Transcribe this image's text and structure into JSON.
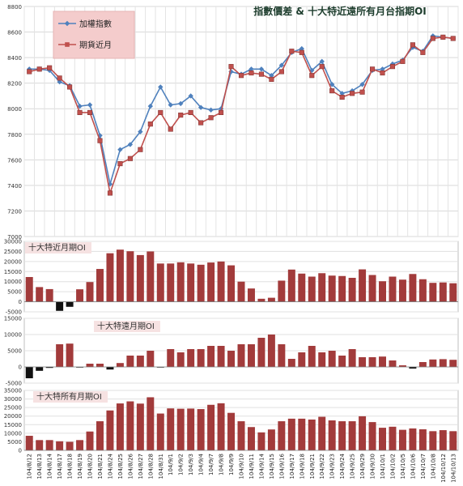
{
  "chart_data": [
    {
      "type": "line",
      "title": "指數價差 & 十大特近遠所有月台指期OI",
      "ylim": [
        7000,
        8800
      ],
      "yticks": [
        7000,
        7200,
        7400,
        7600,
        7800,
        8000,
        8200,
        8400,
        8600,
        8800
      ],
      "grid": true,
      "legend_position": "top-left",
      "categories": [
        "104/8/12",
        "104/8/13",
        "104/8/14",
        "104/8/17",
        "104/8/18",
        "104/8/19",
        "104/8/20",
        "104/8/21",
        "104/8/24",
        "104/8/25",
        "104/8/26",
        "104/8/27",
        "104/8/28",
        "104/8/31",
        "104/9/1",
        "104/9/2",
        "104/9/3",
        "104/9/4",
        "104/9/7",
        "104/9/8",
        "104/9/9",
        "104/9/10",
        "104/9/11",
        "104/9/14",
        "104/9/15",
        "104/9/16",
        "104/9/17",
        "104/9/18",
        "104/9/21",
        "104/9/22",
        "104/9/23",
        "104/9/24",
        "104/9/25",
        "104/9/29",
        "104/9/30",
        "104/10/1",
        "104/10/2",
        "104/10/5",
        "104/10/6",
        "104/10/7",
        "104/10/8",
        "104/10/12",
        "104/10/13"
      ],
      "series": [
        {
          "name": "加權指數",
          "color": "#4f81bd",
          "marker": "diamond",
          "values": [
            8310,
            8310,
            8300,
            8210,
            8180,
            8020,
            8030,
            7790,
            7410,
            7680,
            7720,
            7820,
            8020,
            8170,
            8030,
            8040,
            8100,
            8010,
            7990,
            8000,
            8290,
            8270,
            8310,
            8310,
            8260,
            8340,
            8440,
            8470,
            8300,
            8370,
            8190,
            8120,
            8140,
            8190,
            8300,
            8310,
            8350,
            8380,
            8480,
            8450,
            8570,
            8560,
            8550
          ]
        },
        {
          "name": "期貨近月",
          "color": "#c0504d",
          "marker": "square",
          "values": [
            8290,
            8310,
            8320,
            8240,
            8170,
            7970,
            7970,
            7750,
            7340,
            7570,
            7610,
            7680,
            7880,
            7970,
            7840,
            7950,
            7970,
            7890,
            7930,
            7970,
            8330,
            8260,
            8280,
            8270,
            8230,
            8290,
            8450,
            8440,
            8260,
            8330,
            8140,
            8090,
            8120,
            8130,
            8310,
            8280,
            8330,
            8370,
            8500,
            8440,
            8550,
            8560,
            8550
          ]
        }
      ]
    },
    {
      "type": "bar",
      "title": "十大特近月期OI",
      "ylim": [
        -5000,
        30000
      ],
      "yticks": [
        -5000,
        0,
        5000,
        10000,
        15000,
        20000,
        25000,
        30000
      ],
      "values": [
        12300,
        7300,
        6300,
        -4500,
        -2500,
        6200,
        9800,
        16300,
        24100,
        25900,
        25100,
        23200,
        25000,
        19000,
        19000,
        19600,
        19000,
        18400,
        19500,
        20000,
        18100,
        10000,
        6600,
        1500,
        2000,
        10500,
        16000,
        14000,
        12500,
        14200,
        13000,
        12800,
        11900,
        16100,
        13300,
        10200,
        12500,
        11000,
        13800,
        11200,
        9400,
        9600,
        9200
      ],
      "color": "#a23b3b",
      "negative_color": "#111111"
    },
    {
      "type": "bar",
      "title": "十大特遠月期OI",
      "ylim": [
        -5000,
        15000
      ],
      "yticks": [
        -5000,
        0,
        5000,
        10000,
        15000
      ],
      "values": [
        -3500,
        -1200,
        -300,
        7000,
        7200,
        -200,
        1000,
        1000,
        -800,
        1200,
        3500,
        3500,
        5000,
        -200,
        5500,
        4500,
        5500,
        5500,
        6500,
        6500,
        5000,
        7000,
        7000,
        9000,
        10000,
        7000,
        2500,
        4500,
        6500,
        4500,
        5000,
        3500,
        5500,
        3000,
        3000,
        3200,
        2000,
        500,
        -500,
        1500,
        2300,
        2400,
        2200
      ],
      "color": "#a23b3b",
      "negative_color": "#111111"
    },
    {
      "type": "bar",
      "title": "十大特所有月期OI",
      "ylim": [
        0,
        35000
      ],
      "yticks": [
        0,
        5000,
        10000,
        15000,
        20000,
        25000,
        30000,
        35000
      ],
      "values": [
        8500,
        6000,
        6000,
        5300,
        5000,
        6000,
        11000,
        17000,
        23300,
        27400,
        28600,
        27300,
        31000,
        21500,
        24500,
        24300,
        24400,
        24100,
        26600,
        27500,
        21900,
        17000,
        13600,
        10500,
        12200,
        17000,
        18500,
        18500,
        18000,
        19600,
        17500,
        17000,
        17000,
        19900,
        16500,
        13200,
        13800,
        12000,
        12800,
        12300,
        11200,
        11800,
        11200
      ],
      "color": "#a23b3b",
      "negative_color": "#111111"
    }
  ]
}
